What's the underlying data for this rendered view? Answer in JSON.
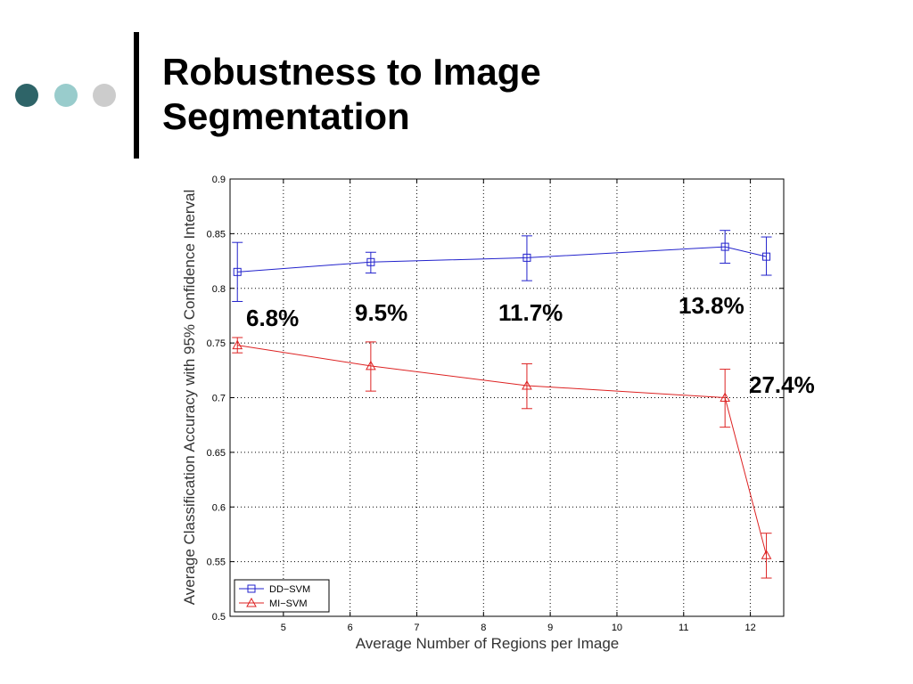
{
  "slide": {
    "title_line1": "Robustness to Image",
    "title_line2": "Segmentation",
    "dots": [
      {
        "name": "dot-dark",
        "color": "#2e6468"
      },
      {
        "name": "dot-teal",
        "color": "#99cccc"
      },
      {
        "name": "dot-gray",
        "color": "#cccccc"
      }
    ]
  },
  "annotations": [
    "6.8%",
    "9.5%",
    "11.7%",
    "13.8%",
    "27.4%"
  ],
  "chart_data": {
    "type": "line",
    "title": "",
    "xlabel": "Average Number of Regions per Image",
    "ylabel": "Average Classification Accuracy with 95% Confidence Interval",
    "xlim": [
      4.2,
      12.5
    ],
    "ylim": [
      0.5,
      0.9
    ],
    "xticks": [
      5,
      6,
      7,
      8,
      9,
      10,
      11,
      12
    ],
    "yticks": [
      0.5,
      0.55,
      0.6,
      0.65,
      0.7,
      0.75,
      0.8,
      0.85,
      0.9
    ],
    "ytick_labels": [
      "0.5",
      "0.55",
      "0.6",
      "0.65",
      "0.7",
      "0.75",
      "0.8",
      "0.85",
      "0.9"
    ],
    "grid": true,
    "legend": "bottom-left",
    "series": [
      {
        "name": "DD−SVM",
        "color": "#2222cc",
        "marker": "square",
        "x": [
          4.31,
          6.31,
          8.65,
          11.62,
          12.24
        ],
        "y": [
          0.815,
          0.824,
          0.828,
          0.838,
          0.829
        ],
        "err_low": [
          0.788,
          0.814,
          0.807,
          0.823,
          0.812
        ],
        "err_high": [
          0.842,
          0.833,
          0.848,
          0.853,
          0.847
        ]
      },
      {
        "name": "MI−SVM",
        "color": "#dd2222",
        "marker": "triangle",
        "x": [
          4.31,
          6.31,
          8.65,
          11.62,
          12.24
        ],
        "y": [
          0.748,
          0.729,
          0.711,
          0.7,
          0.556
        ],
        "err_low": [
          0.741,
          0.706,
          0.69,
          0.673,
          0.535
        ],
        "err_high": [
          0.755,
          0.751,
          0.731,
          0.726,
          0.576
        ]
      }
    ]
  }
}
